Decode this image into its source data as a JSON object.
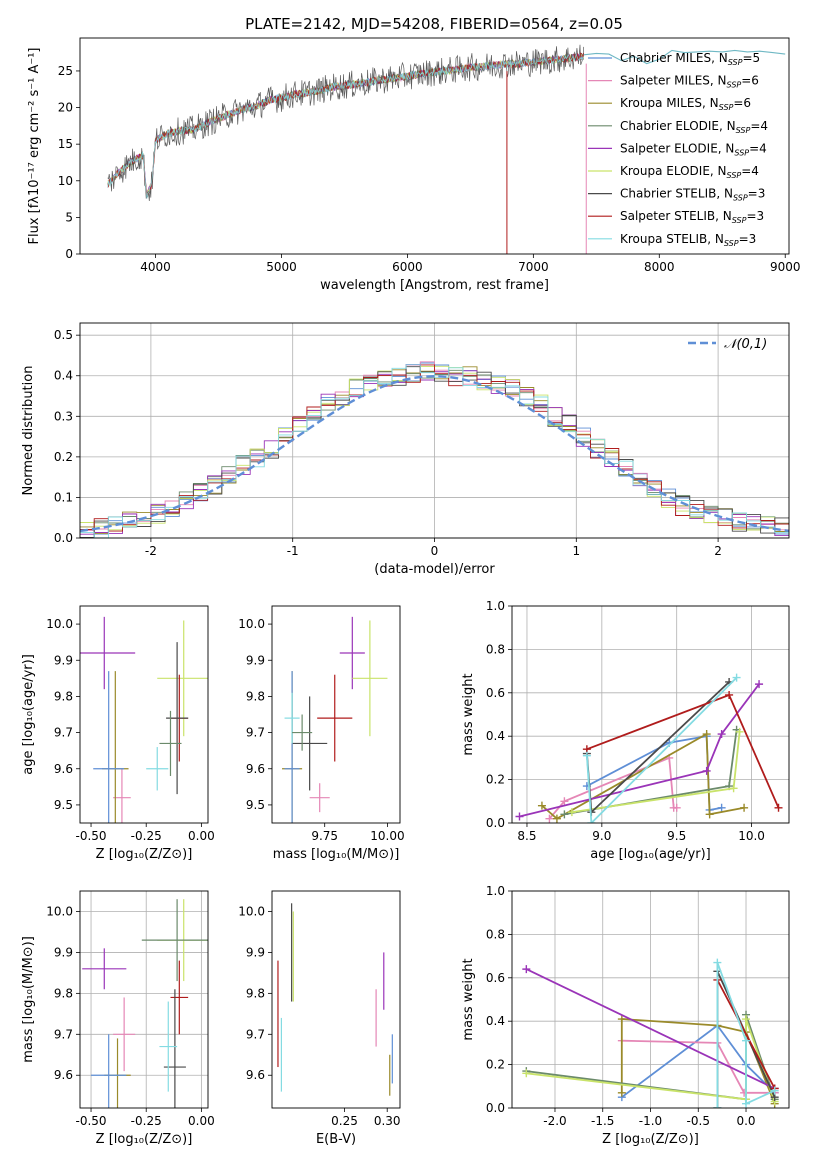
{
  "figure_title": "PLATE=2142, MJD=54208, FIBERID=0564, z=0.05",
  "legend": [
    {
      "label": "Chabrier MILES, N",
      "sub": "SSP",
      "tail": "=5",
      "color": "#5f8fd6"
    },
    {
      "label": "Salpeter MILES, N",
      "sub": "SSP",
      "tail": "=6",
      "color": "#e587b6"
    },
    {
      "label": "Kroupa MILES, N",
      "sub": "SSP",
      "tail": "=6",
      "color": "#9a8a2a"
    },
    {
      "label": "Chabrier ELODIE, N",
      "sub": "SSP",
      "tail": "=4",
      "color": "#6b8a6b"
    },
    {
      "label": "Salpeter ELODIE, N",
      "sub": "SSP",
      "tail": "=4",
      "color": "#9a34b8"
    },
    {
      "label": "Kroupa ELODIE, N",
      "sub": "SSP",
      "tail": "=4",
      "color": "#c9e36a"
    },
    {
      "label": "Chabrier STELIB, N",
      "sub": "SSP",
      "tail": "=3",
      "color": "#4a4a4a"
    },
    {
      "label": "Salpeter STELIB, N",
      "sub": "SSP",
      "tail": "=3",
      "color": "#b01c1c"
    },
    {
      "label": "Kroupa STELIB, N",
      "sub": "SSP",
      "tail": "=3",
      "color": "#84dbe2"
    }
  ],
  "chart_data": [
    {
      "type": "line",
      "id": "spectrum",
      "xlabel": "wavelength [Angstrom, rest frame]",
      "ylabel": "Flux [fλ10⁻¹⁷ erg cm⁻² s⁻¹ A⁻¹]",
      "xlim": [
        3400,
        9030
      ],
      "ylim": [
        0,
        29.5
      ],
      "xticks": [
        4000,
        5000,
        6000,
        7000,
        8000,
        9000
      ],
      "yticks": [
        0,
        5,
        10,
        15,
        20,
        25
      ],
      "grid": false,
      "legend_position": "top-right",
      "x": [
        3620,
        3700,
        3800,
        3900,
        3930,
        3970,
        4000,
        4100,
        4200,
        4300,
        4400,
        4500,
        4600,
        4700,
        4800,
        4900,
        5000,
        5100,
        5200,
        5300,
        5400,
        5500,
        5600,
        5700,
        5800,
        5900,
        6000,
        6100,
        6200,
        6300,
        6400,
        6500,
        6600,
        6700,
        6800,
        6900,
        7000,
        7100,
        7200,
        7300,
        7400
      ],
      "y": [
        9.5,
        11.0,
        12.5,
        13.5,
        8.0,
        9.5,
        15.5,
        16.5,
        16.8,
        17.0,
        17.8,
        18.5,
        19.2,
        19.8,
        20.2,
        21.0,
        21.3,
        21.8,
        22.0,
        22.3,
        22.8,
        23.0,
        23.2,
        23.5,
        23.8,
        24.0,
        24.3,
        24.6,
        24.8,
        25.0,
        25.2,
        25.5,
        25.6,
        25.8,
        26.0,
        26.0,
        26.2,
        26.4,
        26.6,
        26.8,
        27.0
      ],
      "model_x": [
        7400,
        7500,
        7600,
        7700,
        7800,
        7900,
        8000,
        8100,
        8200,
        8300,
        8400,
        8500,
        8600,
        8700,
        8800,
        8900,
        9000
      ],
      "model_y": [
        27.2,
        27.4,
        27.3,
        26.4,
        27.0,
        26.0,
        26.6,
        27.8,
        27.5,
        27.6,
        27.7,
        27.6,
        27.8,
        27.6,
        27.7,
        27.5,
        27.3
      ]
    },
    {
      "type": "line",
      "id": "residuals",
      "xlabel": "(data-model)/error",
      "ylabel": "Normed distribution",
      "xlim": [
        -2.5,
        2.5
      ],
      "ylim": [
        0,
        0.53
      ],
      "xticks": [
        -2,
        -1,
        0,
        1,
        2
      ],
      "yticks": [
        0.0,
        0.1,
        0.2,
        0.3,
        0.4,
        0.5
      ],
      "grid": true,
      "legend_position": "top-right",
      "series": [
        {
          "name": "𝒩(0,1)",
          "distribution": "normal",
          "mean": 0,
          "sigma": 1,
          "color": "#5f8fd6",
          "style": "dashed"
        }
      ],
      "hist_bins": [
        -2.5,
        -2.4,
        -2.3,
        -2.2,
        -2.1,
        -2.0,
        -1.9,
        -1.8,
        -1.7,
        -1.6,
        -1.5,
        -1.4,
        -1.3,
        -1.2,
        -1.1,
        -1.0,
        -0.9,
        -0.8,
        -0.7,
        -0.6,
        -0.5,
        -0.4,
        -0.3,
        -0.2,
        -0.1,
        0.0,
        0.1,
        0.2,
        0.3,
        0.4,
        0.5,
        0.6,
        0.7,
        0.8,
        0.9,
        1.0,
        1.1,
        1.2,
        1.3,
        1.4,
        1.5,
        1.6,
        1.7,
        1.8,
        1.9,
        2.0,
        2.1,
        2.2,
        2.3,
        2.4,
        2.5
      ],
      "hist_base": [
        0.02,
        0.025,
        0.03,
        0.04,
        0.05,
        0.06,
        0.075,
        0.09,
        0.11,
        0.13,
        0.16,
        0.18,
        0.2,
        0.22,
        0.25,
        0.28,
        0.3,
        0.33,
        0.35,
        0.37,
        0.38,
        0.39,
        0.4,
        0.405,
        0.41,
        0.41,
        0.4,
        0.4,
        0.39,
        0.38,
        0.37,
        0.35,
        0.33,
        0.3,
        0.28,
        0.25,
        0.22,
        0.2,
        0.17,
        0.14,
        0.12,
        0.1,
        0.08,
        0.07,
        0.06,
        0.05,
        0.04,
        0.035,
        0.03,
        0.025
      ]
    },
    {
      "type": "scatter",
      "id": "age-vs-Z",
      "xlabel": "Z [log₁₀(Z/Z⊙)]",
      "ylabel": "age  [log₁₀(age/yr)]",
      "xlim": [
        -0.55,
        0.03
      ],
      "ylim": [
        9.45,
        10.05
      ],
      "xticks": [
        -0.5,
        -0.25,
        0.0
      ],
      "yticks": [
        9.5,
        9.6,
        9.7,
        9.8,
        9.9,
        10.0
      ],
      "grid": false,
      "points": [
        {
          "x": -0.44,
          "y": 9.92,
          "xerr": 0.14,
          "yerr": 0.1,
          "c": 4
        },
        {
          "x": -0.08,
          "y": 9.85,
          "xerr": 0.12,
          "yerr": 0.16,
          "c": 5
        },
        {
          "x": -0.1,
          "y": 9.74,
          "xerr": 0.04,
          "yerr": 0.12,
          "c": 7
        },
        {
          "x": -0.11,
          "y": 9.74,
          "xerr": 0.05,
          "yerr": 0.21,
          "c": 6
        },
        {
          "x": -0.14,
          "y": 9.67,
          "xerr": 0.05,
          "yerr": 0.09,
          "c": 3
        },
        {
          "x": -0.36,
          "y": 9.52,
          "xerr": 0.04,
          "yerr": 0.08,
          "c": 1
        },
        {
          "x": -0.39,
          "y": 9.6,
          "xerr": 0.06,
          "yerr": 0.27,
          "c": 2
        },
        {
          "x": -0.42,
          "y": 9.6,
          "xerr": 0.07,
          "yerr": 0.27,
          "c": 0
        },
        {
          "x": -0.2,
          "y": 9.6,
          "xerr": 0.05,
          "yerr": 0.06,
          "c": 8
        }
      ]
    },
    {
      "type": "scatter",
      "id": "age-vs-mass",
      "xlabel": "mass [log₁₀(M/M⊙)]",
      "ylabel": "",
      "xlim": [
        9.54,
        10.05
      ],
      "ylim": [
        9.45,
        10.05
      ],
      "xticks": [
        9.75,
        10.0
      ],
      "yticks": [
        9.5,
        9.6,
        9.7,
        9.8,
        9.9,
        10.0
      ],
      "grid": false,
      "points": [
        {
          "x": 9.86,
          "y": 9.92,
          "xerr": 0.05,
          "yerr": 0.1,
          "c": 4
        },
        {
          "x": 9.93,
          "y": 9.85,
          "xerr": 0.07,
          "yerr": 0.16,
          "c": 5
        },
        {
          "x": 9.79,
          "y": 9.74,
          "xerr": 0.07,
          "yerr": 0.12,
          "c": 7
        },
        {
          "x": 9.69,
          "y": 9.67,
          "xerr": 0.07,
          "yerr": 0.13,
          "c": 6
        },
        {
          "x": 9.73,
          "y": 9.52,
          "xerr": 0.04,
          "yerr": 0.04,
          "c": 1
        },
        {
          "x": 9.62,
          "y": 9.6,
          "xerr": 0.04,
          "yerr": 0.27,
          "c": 2
        },
        {
          "x": 9.62,
          "y": 9.6,
          "xerr": 0.03,
          "yerr": 0.27,
          "c": 0
        },
        {
          "x": 9.62,
          "y": 9.74,
          "xerr": 0.03,
          "yerr": 0.07,
          "c": 8
        },
        {
          "x": 9.66,
          "y": 9.7,
          "xerr": 0.04,
          "yerr": 0.05,
          "c": 3
        }
      ]
    },
    {
      "type": "line",
      "id": "weight-vs-age",
      "xlabel": "age  [log₁₀(age/yr)]",
      "ylabel": "mass weight",
      "xlim": [
        8.4,
        10.25
      ],
      "ylim": [
        0,
        1.0
      ],
      "xticks": [
        8.5,
        9.0,
        9.5,
        10.0
      ],
      "yticks": [
        0.0,
        0.2,
        0.4,
        0.6,
        0.8,
        1.0
      ],
      "grid": true,
      "series": [
        {
          "name": "Chabrier MILES",
          "c": 0,
          "x": [
            8.9,
            9.45,
            9.7,
            9.72,
            9.8
          ],
          "y": [
            0.17,
            0.37,
            0.4,
            0.06,
            0.07
          ]
        },
        {
          "name": "Salpeter MILES",
          "c": 1,
          "x": [
            8.65,
            8.75,
            9.45,
            9.48,
            9.5
          ],
          "y": [
            0.02,
            0.1,
            0.3,
            0.07,
            0.07
          ]
        },
        {
          "name": "Kroupa MILES",
          "c": 2,
          "x": [
            8.6,
            8.7,
            9.7,
            9.72,
            9.95
          ],
          "y": [
            0.08,
            0.02,
            0.41,
            0.04,
            0.07
          ]
        },
        {
          "name": "Chabrier ELODIE",
          "c": 3,
          "x": [
            8.75,
            9.85,
            9.9
          ],
          "y": [
            0.04,
            0.17,
            0.43
          ]
        },
        {
          "name": "Salpeter ELODIE",
          "c": 4,
          "x": [
            8.45,
            9.7,
            9.8,
            10.05
          ],
          "y": [
            0.03,
            0.24,
            0.41,
            0.64
          ]
        },
        {
          "name": "Kroupa ELODIE",
          "c": 5,
          "x": [
            8.8,
            9.88,
            9.92
          ],
          "y": [
            0.05,
            0.16,
            0.42
          ]
        },
        {
          "name": "Chabrier STELIB",
          "c": 6,
          "x": [
            8.9,
            8.93,
            9.85
          ],
          "y": [
            0.32,
            0.05,
            0.65
          ]
        },
        {
          "name": "Salpeter STELIB",
          "c": 7,
          "x": [
            8.9,
            9.85,
            10.18
          ],
          "y": [
            0.34,
            0.59,
            0.07
          ]
        },
        {
          "name": "Kroupa STELIB",
          "c": 8,
          "x": [
            8.9,
            8.93,
            9.9
          ],
          "y": [
            0.31,
            0.0,
            0.67
          ]
        }
      ]
    },
    {
      "type": "scatter",
      "id": "mass-vs-Z",
      "xlabel": "Z [log₁₀(Z/Z⊙)]",
      "ylabel": "mass [log₁₀(M/M⊙)]",
      "xlim": [
        -0.55,
        0.03
      ],
      "ylim": [
        9.52,
        10.05
      ],
      "xticks": [
        -0.5,
        -0.25,
        0.0
      ],
      "yticks": [
        9.6,
        9.7,
        9.8,
        9.9,
        10.0
      ],
      "grid": true,
      "points": [
        {
          "x": -0.44,
          "y": 9.86,
          "xerr": 0.1,
          "yerr": 0.05,
          "c": 4
        },
        {
          "x": -0.08,
          "y": 9.93,
          "xerr": 0.12,
          "yerr": 0.1,
          "c": 5
        },
        {
          "x": -0.1,
          "y": 9.79,
          "xerr": 0.04,
          "yerr": 0.09,
          "c": 7
        },
        {
          "x": -0.11,
          "y": 9.93,
          "xerr": 0.16,
          "yerr": 0.1,
          "c": 3
        },
        {
          "x": -0.12,
          "y": 9.62,
          "xerr": 0.05,
          "yerr": 0.19,
          "c": 6
        },
        {
          "x": -0.35,
          "y": 9.7,
          "xerr": 0.05,
          "yerr": 0.09,
          "c": 1
        },
        {
          "x": -0.38,
          "y": 9.6,
          "xerr": 0.06,
          "yerr": 0.09,
          "c": 2
        },
        {
          "x": -0.42,
          "y": 9.6,
          "xerr": 0.08,
          "yerr": 0.1,
          "c": 0
        },
        {
          "x": -0.15,
          "y": 9.67,
          "xerr": 0.04,
          "yerr": 0.11,
          "c": 8
        }
      ]
    },
    {
      "type": "scatter",
      "id": "mass-vs-EBV",
      "xlabel": "E(B-V)",
      "ylabel": "",
      "xlim": [
        0.165,
        0.315
      ],
      "ylim": [
        9.52,
        10.05
      ],
      "xticks": [
        0.25,
        0.3
      ],
      "yticks": [
        9.6,
        9.7,
        9.8,
        9.9,
        10.0
      ],
      "grid": false,
      "points": [
        {
          "x": 0.172,
          "y": 9.75,
          "xerr": 0.0,
          "yerr": 0.13,
          "c": 7
        },
        {
          "x": 0.176,
          "y": 9.65,
          "xerr": 0.0,
          "yerr": 0.09,
          "c": 8
        },
        {
          "x": 0.188,
          "y": 9.9,
          "xerr": 0.0,
          "yerr": 0.12,
          "c": 6
        },
        {
          "x": 0.19,
          "y": 9.89,
          "xerr": 0.0,
          "yerr": 0.11,
          "c": 5
        },
        {
          "x": 0.287,
          "y": 9.74,
          "xerr": 0.0,
          "yerr": 0.07,
          "c": 1
        },
        {
          "x": 0.296,
          "y": 9.83,
          "xerr": 0.0,
          "yerr": 0.07,
          "c": 4
        },
        {
          "x": 0.303,
          "y": 9.6,
          "xerr": 0.0,
          "yerr": 0.05,
          "c": 2
        },
        {
          "x": 0.306,
          "y": 9.64,
          "xerr": 0.0,
          "yerr": 0.06,
          "c": 0
        }
      ]
    },
    {
      "type": "line",
      "id": "weight-vs-Z",
      "xlabel": "Z [log₁₀(Z/Z⊙)]",
      "ylabel": "mass weight",
      "xlim": [
        -2.45,
        0.45
      ],
      "ylim": [
        0,
        1.0
      ],
      "xticks": [
        -2.0,
        -1.5,
        -1.0,
        -0.5,
        0.0
      ],
      "yticks": [
        0.0,
        0.2,
        0.4,
        0.6,
        0.8,
        1.0
      ],
      "grid": true,
      "series": [
        {
          "name": "Chabrier MILES",
          "c": 0,
          "x": [
            -1.3,
            -0.3,
            0.0,
            0.3
          ],
          "y": [
            0.05,
            0.38,
            0.2,
            0.07
          ]
        },
        {
          "name": "Salpeter MILES",
          "c": 1,
          "x": [
            -1.3,
            -0.3,
            -0.02,
            0.3
          ],
          "y": [
            0.31,
            0.3,
            0.07,
            0.07
          ]
        },
        {
          "name": "Kroupa MILES",
          "c": 2,
          "x": [
            -1.3,
            -1.3,
            -0.3,
            0.0,
            0.3
          ],
          "y": [
            0.07,
            0.41,
            0.38,
            0.35,
            0.02
          ]
        },
        {
          "name": "Chabrier ELODIE",
          "c": 3,
          "x": [
            -2.3,
            0.0,
            0.0,
            0.3
          ],
          "y": [
            0.17,
            0.04,
            0.43,
            0.04
          ]
        },
        {
          "name": "Salpeter ELODIE",
          "c": 4,
          "x": [
            -2.3,
            0.3
          ],
          "y": [
            0.64,
            0.09
          ]
        },
        {
          "name": "Kroupa ELODIE",
          "c": 5,
          "x": [
            -2.3,
            0.0,
            0.0,
            0.3
          ],
          "y": [
            0.16,
            0.04,
            0.41,
            0.03
          ]
        },
        {
          "name": "Chabrier STELIB",
          "c": 6,
          "x": [
            -0.3,
            -0.3,
            0.3
          ],
          "y": [
            0.0,
            0.63,
            0.05
          ]
        },
        {
          "name": "Salpeter STELIB",
          "c": 7,
          "x": [
            -0.3,
            0.3
          ],
          "y": [
            0.59,
            0.09
          ]
        },
        {
          "name": "Kroupa STELIB",
          "c": 8,
          "x": [
            -0.3,
            -0.3,
            0.0,
            0.0,
            0.3
          ],
          "y": [
            0.0,
            0.67,
            0.31,
            0.02,
            0.08
          ]
        }
      ]
    }
  ]
}
